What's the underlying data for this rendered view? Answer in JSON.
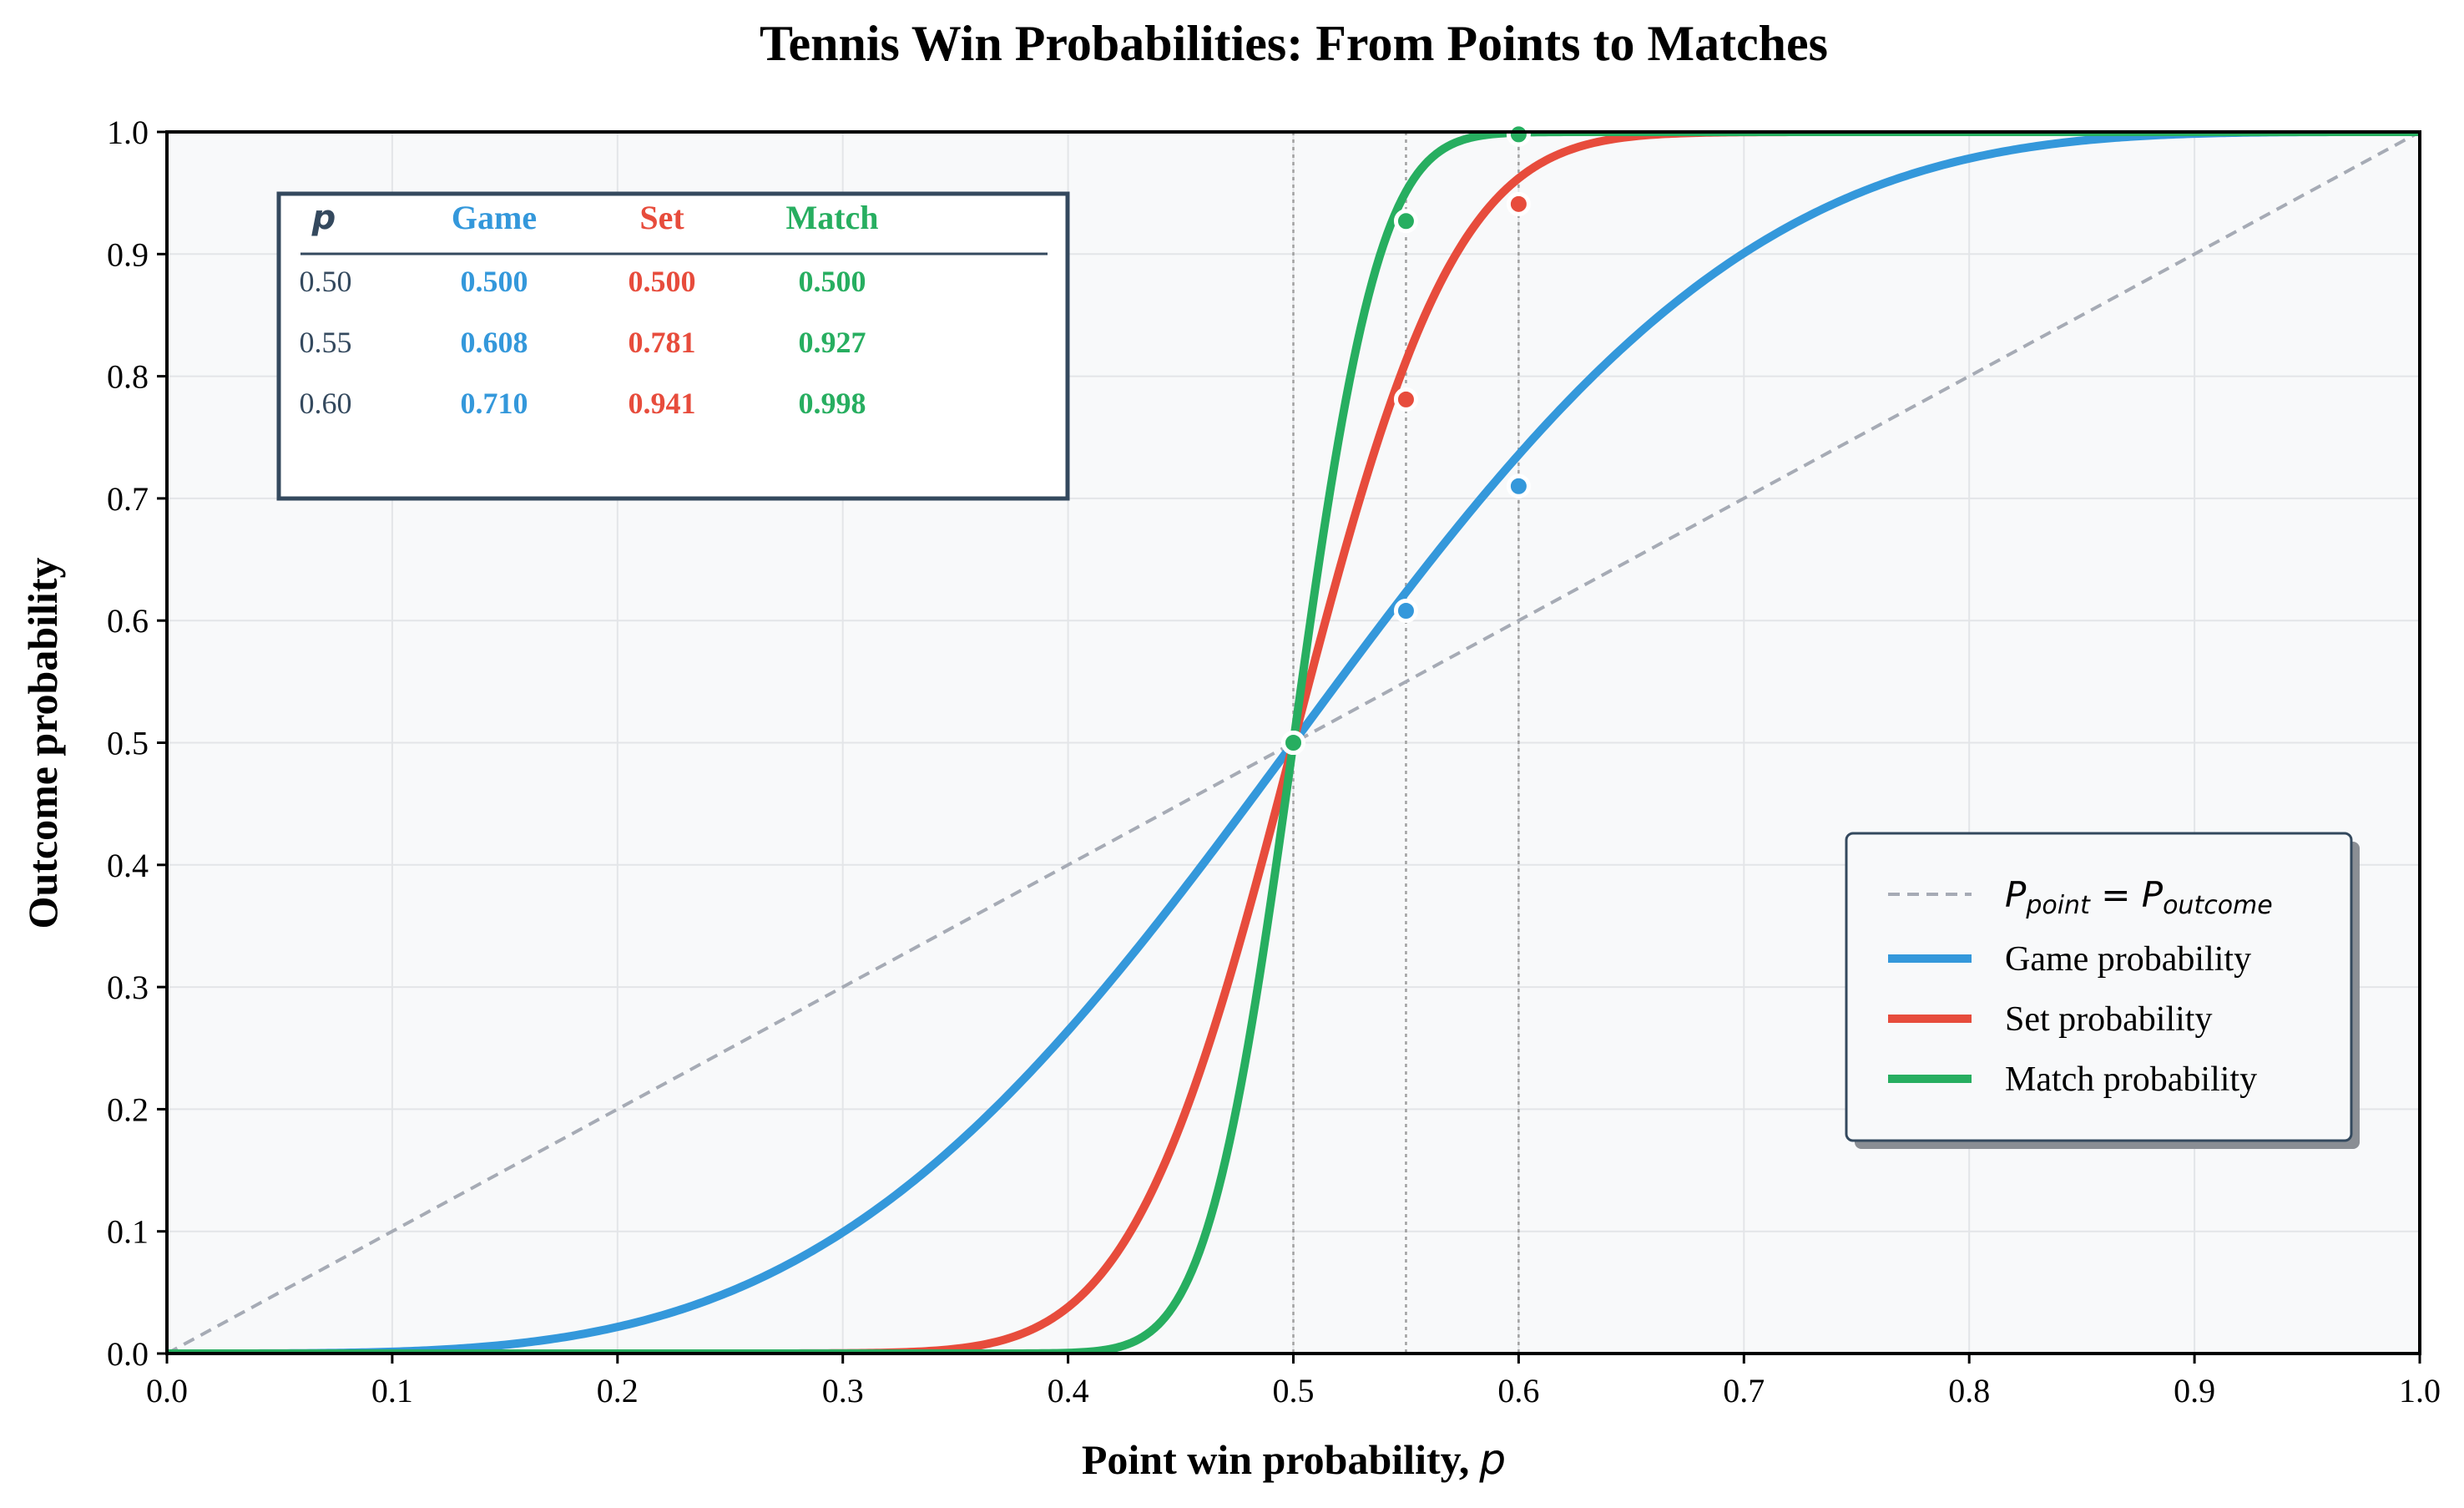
{
  "chart_data": {
    "type": "line",
    "title": "Tennis Win Probabilities: From Points to Matches",
    "xlabel": "Point win probability,",
    "xlabel_symbol": "p",
    "ylabel": "Outcome probability",
    "xlim": [
      0,
      1
    ],
    "ylim": [
      0,
      1
    ],
    "xticks": [
      "0.0",
      "0.1",
      "0.2",
      "0.3",
      "0.4",
      "0.5",
      "0.6",
      "0.7",
      "0.8",
      "0.9",
      "1.0"
    ],
    "yticks": [
      "0.0",
      "0.1",
      "0.2",
      "0.3",
      "0.4",
      "0.5",
      "0.6",
      "0.7",
      "0.8",
      "0.9",
      "1.0"
    ],
    "grid": true,
    "reference_lines_x": [
      0.5,
      0.55,
      0.6
    ],
    "diagonal": {
      "label_main": "P",
      "label_sub1": "point",
      "label_eq": " = ",
      "label_main2": "P",
      "label_sub2": "outcome",
      "color": "#a6abb5",
      "style": "dashed"
    },
    "series": [
      {
        "name": "Game probability",
        "color": "#3498db",
        "model": "game"
      },
      {
        "name": "Set probability",
        "color": "#e74c3c",
        "model": "set"
      },
      {
        "name": "Match probability",
        "color": "#27ae60",
        "model": "match"
      }
    ],
    "highlight_points": [
      {
        "p": 0.5,
        "game": 0.5,
        "set": 0.5,
        "match": 0.5
      },
      {
        "p": 0.55,
        "game": 0.608,
        "set": 0.781,
        "match": 0.927
      },
      {
        "p": 0.6,
        "game": 0.71,
        "set": 0.941,
        "match": 0.998
      }
    ],
    "legend_position": "lower-right"
  },
  "table": {
    "headers": {
      "p": "p",
      "game": "Game",
      "set": "Set",
      "match": "Match"
    },
    "rows": [
      {
        "p": "0.50",
        "game": "0.500",
        "set": "0.500",
        "match": "0.500"
      },
      {
        "p": "0.55",
        "game": "0.608",
        "set": "0.781",
        "match": "0.927"
      },
      {
        "p": "0.60",
        "game": "0.710",
        "set": "0.941",
        "match": "0.998"
      }
    ]
  },
  "colors": {
    "game": "#3498db",
    "set": "#e74c3c",
    "match": "#27ae60",
    "frame": "#34495e",
    "plot_bg": "#f8f9fa"
  }
}
